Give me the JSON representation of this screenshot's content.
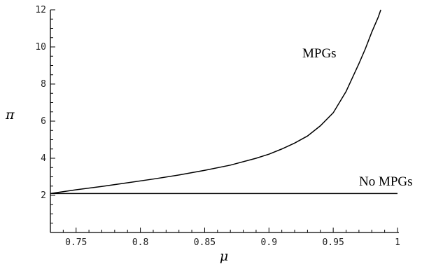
{
  "chart_data": {
    "type": "line",
    "xlabel": "μ",
    "ylabel": "π",
    "xlim": [
      0.73,
      1.0
    ],
    "ylim": [
      0,
      12
    ],
    "x_ticks": [
      0.75,
      0.8,
      0.85,
      0.9,
      0.95,
      1.0
    ],
    "x_tick_labels": [
      "0.75",
      "0.8",
      "0.85",
      "0.9",
      "0.95",
      "1"
    ],
    "y_ticks": [
      2,
      4,
      6,
      8,
      10,
      12
    ],
    "y_tick_labels": [
      "2",
      "4",
      "6",
      "8",
      "10",
      "12"
    ],
    "grid": false,
    "series": [
      {
        "name": "MPGs",
        "x": [
          0.73,
          0.75,
          0.77,
          0.79,
          0.81,
          0.83,
          0.85,
          0.87,
          0.89,
          0.9,
          0.91,
          0.92,
          0.93,
          0.94,
          0.95,
          0.96,
          0.97,
          0.975,
          0.98,
          0.985,
          0.987
        ],
        "y": [
          2.1,
          2.3,
          2.48,
          2.68,
          2.88,
          3.1,
          3.35,
          3.63,
          4.0,
          4.22,
          4.5,
          4.82,
          5.2,
          5.75,
          6.45,
          7.6,
          9.1,
          9.9,
          10.8,
          11.6,
          12.0
        ]
      },
      {
        "name": "No MPGs",
        "x": [
          0.73,
          1.0
        ],
        "y": [
          2.1,
          2.1
        ]
      }
    ]
  }
}
